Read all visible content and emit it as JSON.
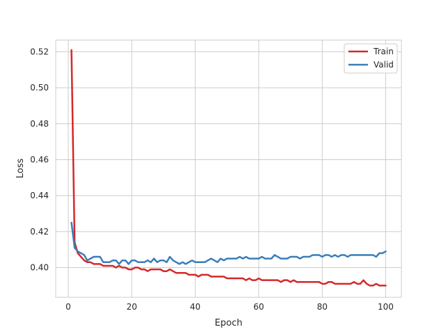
{
  "chart_data": {
    "type": "line",
    "title": "",
    "xlabel": "Epoch",
    "ylabel": "Loss",
    "xlim": [
      -3.95,
      104.95
    ],
    "ylim": [
      0.3835,
      0.5265
    ],
    "xticks": [
      0,
      20,
      40,
      60,
      80,
      100
    ],
    "xtick_labels": [
      "0",
      "20",
      "40",
      "60",
      "80",
      "100"
    ],
    "yticks": [
      0.4,
      0.42,
      0.44,
      0.46,
      0.48,
      0.5,
      0.52
    ],
    "ytick_labels": [
      "0.40",
      "0.42",
      "0.44",
      "0.46",
      "0.48",
      "0.50",
      "0.52"
    ],
    "grid": true,
    "legend_position": "top-right",
    "x": [
      1,
      2,
      3,
      4,
      5,
      6,
      7,
      8,
      9,
      10,
      11,
      12,
      13,
      14,
      15,
      16,
      17,
      18,
      19,
      20,
      21,
      22,
      23,
      24,
      25,
      26,
      27,
      28,
      29,
      30,
      31,
      32,
      33,
      34,
      35,
      36,
      37,
      38,
      39,
      40,
      41,
      42,
      43,
      44,
      45,
      46,
      47,
      48,
      49,
      50,
      51,
      52,
      53,
      54,
      55,
      56,
      57,
      58,
      59,
      60,
      61,
      62,
      63,
      64,
      65,
      66,
      67,
      68,
      69,
      70,
      71,
      72,
      73,
      74,
      75,
      76,
      77,
      78,
      79,
      80,
      81,
      82,
      83,
      84,
      85,
      86,
      87,
      88,
      89,
      90,
      91,
      92,
      93,
      94,
      95,
      96,
      97,
      98,
      99,
      100
    ],
    "series": [
      {
        "name": "Train",
        "color": "#d62728",
        "values": [
          0.521,
          0.414,
          0.408,
          0.406,
          0.404,
          0.403,
          0.403,
          0.402,
          0.402,
          0.402,
          0.401,
          0.401,
          0.401,
          0.401,
          0.4,
          0.401,
          0.4,
          0.4,
          0.399,
          0.399,
          0.4,
          0.4,
          0.399,
          0.399,
          0.398,
          0.399,
          0.399,
          0.399,
          0.399,
          0.398,
          0.398,
          0.399,
          0.398,
          0.397,
          0.397,
          0.397,
          0.397,
          0.396,
          0.396,
          0.396,
          0.395,
          0.396,
          0.396,
          0.396,
          0.395,
          0.395,
          0.395,
          0.395,
          0.395,
          0.394,
          0.394,
          0.394,
          0.394,
          0.394,
          0.394,
          0.393,
          0.394,
          0.393,
          0.393,
          0.394,
          0.393,
          0.393,
          0.393,
          0.393,
          0.393,
          0.393,
          0.392,
          0.393,
          0.393,
          0.392,
          0.393,
          0.392,
          0.392,
          0.392,
          0.392,
          0.392,
          0.392,
          0.392,
          0.392,
          0.391,
          0.391,
          0.392,
          0.392,
          0.391,
          0.391,
          0.391,
          0.391,
          0.391,
          0.391,
          0.392,
          0.391,
          0.391,
          0.393,
          0.391,
          0.39,
          0.39,
          0.391,
          0.39,
          0.39,
          0.39
        ]
      },
      {
        "name": "Valid",
        "color": "#3a7dba",
        "values": [
          0.425,
          0.411,
          0.409,
          0.408,
          0.407,
          0.404,
          0.405,
          0.406,
          0.406,
          0.406,
          0.403,
          0.403,
          0.403,
          0.404,
          0.404,
          0.402,
          0.404,
          0.404,
          0.402,
          0.404,
          0.404,
          0.403,
          0.403,
          0.403,
          0.404,
          0.403,
          0.405,
          0.403,
          0.404,
          0.404,
          0.403,
          0.406,
          0.404,
          0.403,
          0.402,
          0.403,
          0.402,
          0.403,
          0.404,
          0.403,
          0.403,
          0.403,
          0.403,
          0.404,
          0.405,
          0.404,
          0.403,
          0.405,
          0.404,
          0.405,
          0.405,
          0.405,
          0.405,
          0.406,
          0.405,
          0.406,
          0.405,
          0.405,
          0.405,
          0.405,
          0.406,
          0.405,
          0.405,
          0.405,
          0.407,
          0.406,
          0.405,
          0.405,
          0.405,
          0.406,
          0.406,
          0.406,
          0.405,
          0.406,
          0.406,
          0.406,
          0.407,
          0.407,
          0.407,
          0.406,
          0.407,
          0.407,
          0.406,
          0.407,
          0.406,
          0.407,
          0.407,
          0.406,
          0.407,
          0.407,
          0.407,
          0.407,
          0.407,
          0.407,
          0.407,
          0.407,
          0.406,
          0.408,
          0.408,
          0.409
        ]
      }
    ]
  }
}
